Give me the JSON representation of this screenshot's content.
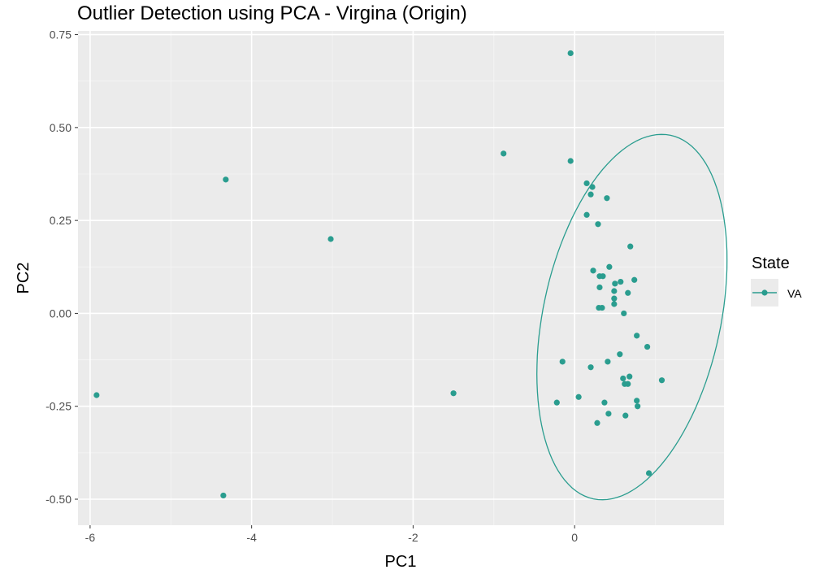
{
  "chart_data": {
    "type": "scatter",
    "title": "Outlier Detection using PCA - Virgina (Origin)",
    "xlabel": "PC1",
    "ylabel": "PC2",
    "xlim": [
      -6.15,
      1.85
    ],
    "ylim": [
      -0.57,
      0.76
    ],
    "x_ticks": [
      -6,
      -4,
      -2,
      0
    ],
    "x_tick_labels": [
      "-6",
      "-4",
      "-2",
      "0"
    ],
    "y_ticks": [
      0.75,
      0.5,
      0.25,
      0.0,
      -0.25,
      -0.5
    ],
    "y_tick_labels": [
      "0.75",
      "0.50",
      "0.25",
      "0.00",
      "-0.25",
      "-0.50"
    ],
    "grid": true,
    "legend": {
      "title": "State",
      "position": "right"
    },
    "series": [
      {
        "name": "VA",
        "color": "#2a9d8f",
        "points": [
          [
            -0.05,
            0.7
          ],
          [
            -0.05,
            0.41
          ],
          [
            -0.88,
            0.43
          ],
          [
            -4.32,
            0.36
          ],
          [
            -3.02,
            0.2
          ],
          [
            0.15,
            0.35
          ],
          [
            0.22,
            0.34
          ],
          [
            0.2,
            0.32
          ],
          [
            0.4,
            0.31
          ],
          [
            0.15,
            0.265
          ],
          [
            0.29,
            0.24
          ],
          [
            0.69,
            0.18
          ],
          [
            0.43,
            0.125
          ],
          [
            0.23,
            0.115
          ],
          [
            0.31,
            0.1
          ],
          [
            0.35,
            0.1
          ],
          [
            0.74,
            0.09
          ],
          [
            0.57,
            0.085
          ],
          [
            0.5,
            0.08
          ],
          [
            0.49,
            0.06
          ],
          [
            0.66,
            0.055
          ],
          [
            0.31,
            0.07
          ],
          [
            0.49,
            0.04
          ],
          [
            0.49,
            0.025
          ],
          [
            0.3,
            0.015
          ],
          [
            0.34,
            0.015
          ],
          [
            0.61,
            0.0
          ],
          [
            0.77,
            -0.06
          ],
          [
            0.9,
            -0.09
          ],
          [
            0.56,
            -0.11
          ],
          [
            0.41,
            -0.13
          ],
          [
            -0.15,
            -0.13
          ],
          [
            0.2,
            -0.145
          ],
          [
            0.6,
            -0.175
          ],
          [
            0.68,
            -0.17
          ],
          [
            1.08,
            -0.18
          ],
          [
            0.62,
            -0.19
          ],
          [
            0.66,
            -0.19
          ],
          [
            -5.92,
            -0.22
          ],
          [
            -1.5,
            -0.215
          ],
          [
            0.05,
            -0.225
          ],
          [
            0.77,
            -0.235
          ],
          [
            -0.22,
            -0.24
          ],
          [
            0.37,
            -0.24
          ],
          [
            0.78,
            -0.25
          ],
          [
            0.42,
            -0.27
          ],
          [
            0.63,
            -0.275
          ],
          [
            0.28,
            -0.295
          ],
          [
            0.92,
            -0.43
          ],
          [
            -4.35,
            -0.49
          ]
        ]
      }
    ],
    "confidence_ellipse": {
      "series": "VA",
      "center": [
        0.71,
        -0.01
      ],
      "semi_axis_x": 1.1,
      "semi_axis_y": 0.5,
      "tilt_deg": 12
    }
  }
}
